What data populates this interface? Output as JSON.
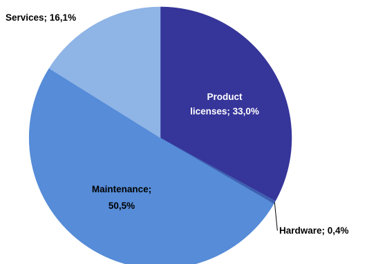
{
  "chart_data": {
    "type": "pie",
    "title": "",
    "legend": "none",
    "slices": [
      {
        "name": "Product licenses",
        "value": 33.0,
        "label_lines": [
          "Product",
          "licenses; 33,0%"
        ],
        "color": "#36359a",
        "label_color": "#ffffff",
        "label_position": "inside"
      },
      {
        "name": "Hardware",
        "value": 0.4,
        "label_lines": [
          "Hardware; 0,4%"
        ],
        "color": "#3f5fb0",
        "label_color": "#000000",
        "label_position": "outside-leader"
      },
      {
        "name": "Maintenance",
        "value": 50.5,
        "label_lines": [
          "Maintenance;",
          "50,5%"
        ],
        "color": "#568cd8",
        "label_color": "#000000",
        "label_position": "inside"
      },
      {
        "name": "Services",
        "value": 16.1,
        "label_lines": [
          "Services; 16,1%"
        ],
        "color": "#8fb4e6",
        "label_color": "#000000",
        "label_position": "outside"
      }
    ]
  }
}
